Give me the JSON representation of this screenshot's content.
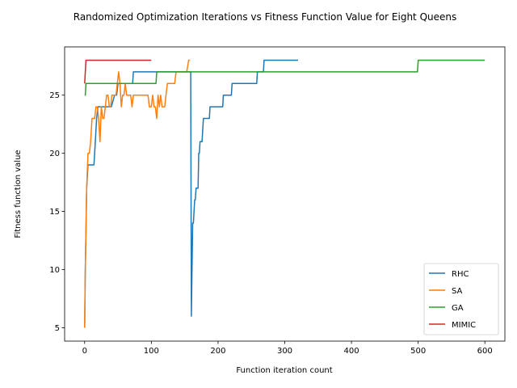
{
  "chart_data": {
    "type": "line",
    "title": "Randomized Optimization Iterations vs Fitness Function Value for Eight Queens",
    "xlabel": "Function iteration count",
    "ylabel": "Fitness function value",
    "xlim": [
      -30,
      630
    ],
    "ylim": [
      3.85,
      29.15
    ],
    "xticks": [
      0,
      100,
      200,
      300,
      400,
      500,
      600
    ],
    "yticks": [
      5,
      10,
      15,
      20,
      25
    ],
    "legend_position": "lower right",
    "series": [
      {
        "name": "RHC",
        "color": "#1f77b4",
        "x": [
          0,
          1,
          3,
          5,
          14,
          16,
          18,
          20,
          27,
          30,
          35,
          40,
          45,
          48,
          50,
          60,
          72,
          73,
          100,
          130,
          155,
          158,
          159,
          160,
          161,
          162,
          163,
          164,
          165,
          166,
          167,
          168,
          170,
          171,
          172,
          173,
          174,
          175,
          176,
          178,
          187,
          188,
          207,
          208,
          220,
          221,
          258,
          259,
          268,
          269,
          320
        ],
        "y": [
          5,
          10,
          17,
          19,
          19,
          21,
          23,
          24,
          24,
          24,
          24,
          24,
          25,
          25,
          26,
          26,
          26,
          27,
          27,
          27,
          27,
          27,
          27,
          6,
          10,
          14,
          14,
          15,
          16,
          16,
          17,
          17,
          17,
          20,
          20,
          21,
          21,
          21,
          21,
          23,
          23,
          24,
          24,
          25,
          25,
          26,
          26,
          27,
          27,
          28,
          28
        ]
      },
      {
        "name": "SA",
        "color": "#ff7f0e",
        "x": [
          0,
          1,
          3,
          5,
          7,
          9,
          11,
          13,
          15,
          17,
          19,
          21,
          23,
          25,
          27,
          29,
          31,
          33,
          35,
          37,
          39,
          41,
          43,
          45,
          47,
          49,
          51,
          53,
          55,
          57,
          59,
          61,
          63,
          65,
          67,
          69,
          71,
          73,
          75,
          80,
          90,
          95,
          97,
          100,
          102,
          104,
          106,
          108,
          110,
          112,
          114,
          116,
          118,
          120,
          122,
          124,
          126,
          128,
          135,
          137,
          139,
          145,
          150,
          153,
          156,
          158
        ],
        "y": [
          5,
          10,
          17,
          20,
          20,
          21,
          23,
          23,
          23,
          24,
          24,
          23,
          21,
          24,
          23,
          23,
          24,
          25,
          25,
          24,
          24,
          25,
          25,
          25,
          25,
          26,
          27,
          26,
          24,
          25,
          25,
          26,
          25,
          25,
          25,
          25,
          24,
          25,
          25,
          25,
          25,
          25,
          24,
          24,
          25,
          24,
          24,
          23,
          25,
          24,
          25,
          24,
          24,
          24,
          25,
          26,
          26,
          26,
          26,
          27,
          27,
          27,
          27,
          27,
          28,
          28
        ]
      },
      {
        "name": "GA",
        "color": "#2ca02c",
        "x": [
          0,
          1,
          2,
          10,
          50,
          100,
          107,
          108,
          200,
          300,
          400,
          499,
          500,
          550,
          600
        ],
        "y": [
          25,
          25,
          26,
          26,
          26,
          26,
          26,
          27,
          27,
          27,
          27,
          27,
          28,
          28,
          28
        ]
      },
      {
        "name": "MIMIC",
        "color": "#d62728",
        "x": [
          0,
          1,
          2,
          3,
          50,
          100
        ],
        "y": [
          26,
          27,
          28,
          28,
          28,
          28
        ]
      }
    ]
  }
}
